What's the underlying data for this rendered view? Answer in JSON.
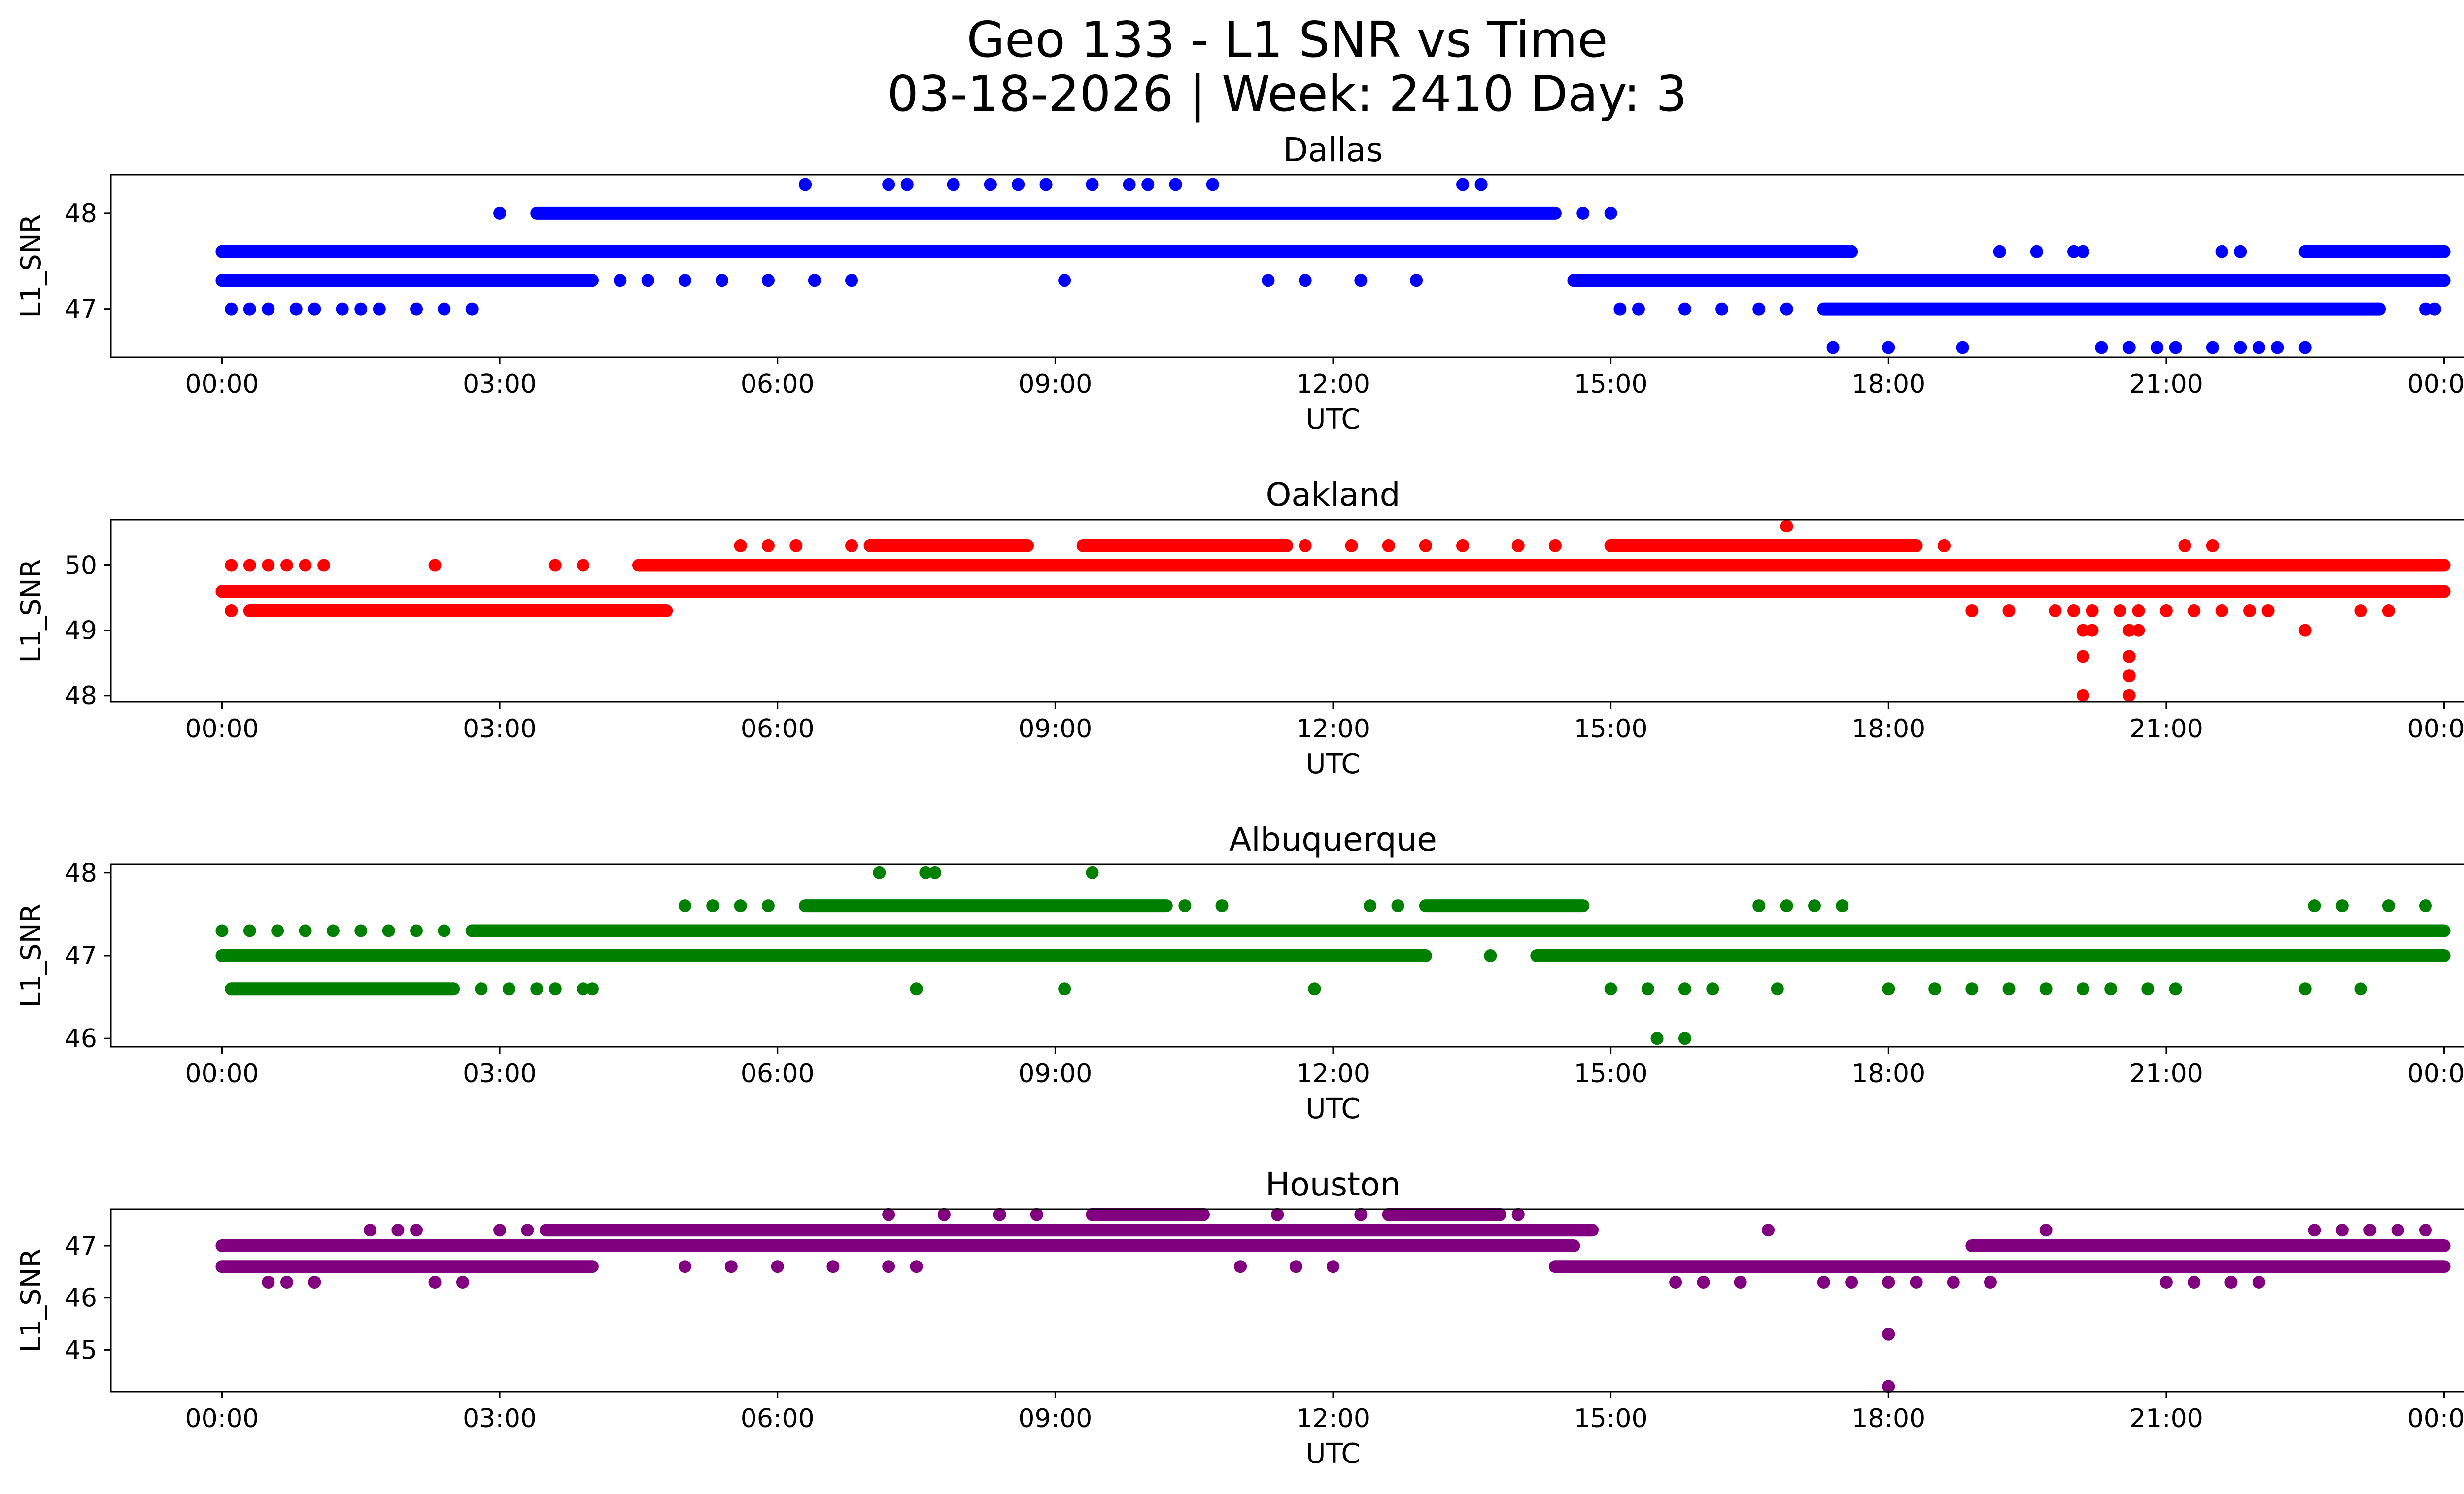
{
  "chart_data": {
    "type": "scatter",
    "title": "Geo 133 - L1 SNR vs Time",
    "subtitle": "03-18-2026 | Week: 2410 Day: 3",
    "xlabel": "UTC",
    "ylabel": "L1_SNR",
    "xlim_hours": [
      -1.2,
      25.2
    ],
    "xticks_hours": [
      0,
      3,
      6,
      9,
      12,
      15,
      18,
      21,
      24
    ],
    "xtick_labels": [
      "00:00",
      "03:00",
      "06:00",
      "09:00",
      "12:00",
      "15:00",
      "18:00",
      "21:00",
      "00:00"
    ],
    "panels": [
      {
        "name": "Dallas",
        "color": "#0000ff",
        "ylim": [
          46.5,
          48.4
        ],
        "yticks": [
          47,
          48
        ],
        "level_bands": [
          {
            "y": 47.6,
            "ranges": [
              [
                0.0,
                17.6
              ],
              [
                22.5,
                24.0
              ]
            ]
          },
          {
            "y": 47.3,
            "ranges": [
              [
                0.0,
                4.0
              ],
              [
                14.6,
                24.0
              ]
            ]
          },
          {
            "y": 47.0,
            "ranges": [
              [
                17.3,
                23.3
              ]
            ]
          },
          {
            "y": 48.0,
            "ranges": [
              [
                3.4,
                14.4
              ]
            ]
          }
        ],
        "scattered_points": [
          [
            0.1,
            47.0
          ],
          [
            0.3,
            47.0
          ],
          [
            0.5,
            47.0
          ],
          [
            0.8,
            47.0
          ],
          [
            1.0,
            47.0
          ],
          [
            1.3,
            47.0
          ],
          [
            1.5,
            47.0
          ],
          [
            1.7,
            47.0
          ],
          [
            2.1,
            47.0
          ],
          [
            2.4,
            47.0
          ],
          [
            2.7,
            47.0
          ],
          [
            4.3,
            47.3
          ],
          [
            4.6,
            47.3
          ],
          [
            5.0,
            47.3
          ],
          [
            5.4,
            47.3
          ],
          [
            5.9,
            47.3
          ],
          [
            6.4,
            47.3
          ],
          [
            6.8,
            47.3
          ],
          [
            9.1,
            47.3
          ],
          [
            11.3,
            47.3
          ],
          [
            11.7,
            47.3
          ],
          [
            12.3,
            47.3
          ],
          [
            12.9,
            47.3
          ],
          [
            3.0,
            48.0
          ],
          [
            14.7,
            48.0
          ],
          [
            15.0,
            48.0
          ],
          [
            15.1,
            47.0
          ],
          [
            15.3,
            47.0
          ],
          [
            15.8,
            47.0
          ],
          [
            16.2,
            47.0
          ],
          [
            16.6,
            47.0
          ],
          [
            16.9,
            47.0
          ],
          [
            23.8,
            47.0
          ],
          [
            23.9,
            47.0
          ],
          [
            6.3,
            48.3
          ],
          [
            7.2,
            48.3
          ],
          [
            7.4,
            48.3
          ],
          [
            7.9,
            48.3
          ],
          [
            8.3,
            48.3
          ],
          [
            8.6,
            48.3
          ],
          [
            8.9,
            48.3
          ],
          [
            9.4,
            48.3
          ],
          [
            9.8,
            48.3
          ],
          [
            10.0,
            48.3
          ],
          [
            10.3,
            48.3
          ],
          [
            10.7,
            48.3
          ],
          [
            13.4,
            48.3
          ],
          [
            13.6,
            48.3
          ],
          [
            19.2,
            47.6
          ],
          [
            19.6,
            47.6
          ],
          [
            20.0,
            47.6
          ],
          [
            20.1,
            47.6
          ],
          [
            21.6,
            47.6
          ],
          [
            21.8,
            47.6
          ],
          [
            17.4,
            46.6
          ],
          [
            18.0,
            46.6
          ],
          [
            18.8,
            46.6
          ],
          [
            20.3,
            46.6
          ],
          [
            20.6,
            46.6
          ],
          [
            20.9,
            46.6
          ],
          [
            21.1,
            46.6
          ],
          [
            21.5,
            46.6
          ],
          [
            21.8,
            46.6
          ],
          [
            22.0,
            46.6
          ],
          [
            22.2,
            46.6
          ],
          [
            22.5,
            46.6
          ]
        ]
      },
      {
        "name": "Oakland",
        "color": "#ff0000",
        "ylim": [
          47.9,
          50.7
        ],
        "yticks": [
          48,
          49,
          50
        ],
        "level_bands": [
          {
            "y": 49.6,
            "ranges": [
              [
                0.0,
                24.0
              ]
            ]
          },
          {
            "y": 49.3,
            "ranges": [
              [
                0.3,
                4.8
              ]
            ]
          },
          {
            "y": 50.0,
            "ranges": [
              [
                4.5,
                24.0
              ]
            ]
          },
          {
            "y": 50.3,
            "ranges": [
              [
                7.0,
                8.7
              ],
              [
                9.3,
                11.5
              ],
              [
                15.0,
                18.3
              ]
            ]
          }
        ],
        "scattered_points": [
          [
            0.1,
            49.3
          ],
          [
            0.1,
            50.0
          ],
          [
            0.3,
            50.0
          ],
          [
            0.5,
            50.0
          ],
          [
            0.7,
            50.0
          ],
          [
            0.9,
            50.0
          ],
          [
            1.1,
            50.0
          ],
          [
            2.3,
            50.0
          ],
          [
            3.6,
            50.0
          ],
          [
            3.9,
            50.0
          ],
          [
            5.6,
            50.3
          ],
          [
            5.9,
            50.3
          ],
          [
            6.2,
            50.3
          ],
          [
            6.8,
            50.3
          ],
          [
            11.7,
            50.3
          ],
          [
            12.2,
            50.3
          ],
          [
            12.6,
            50.3
          ],
          [
            13.0,
            50.3
          ],
          [
            13.4,
            50.3
          ],
          [
            14.0,
            50.3
          ],
          [
            14.4,
            50.3
          ],
          [
            16.2,
            50.3
          ],
          [
            16.6,
            50.3
          ],
          [
            18.6,
            50.3
          ],
          [
            21.2,
            50.3
          ],
          [
            21.5,
            50.3
          ],
          [
            16.9,
            50.6
          ],
          [
            18.9,
            49.3
          ],
          [
            19.3,
            49.3
          ],
          [
            19.8,
            49.3
          ],
          [
            20.0,
            49.3
          ],
          [
            20.2,
            49.3
          ],
          [
            20.5,
            49.3
          ],
          [
            20.7,
            49.3
          ],
          [
            21.0,
            49.3
          ],
          [
            21.3,
            49.3
          ],
          [
            21.6,
            49.3
          ],
          [
            21.9,
            49.3
          ],
          [
            22.1,
            49.3
          ],
          [
            23.1,
            49.3
          ],
          [
            23.4,
            49.3
          ],
          [
            20.1,
            49.0
          ],
          [
            20.2,
            49.0
          ],
          [
            20.6,
            49.0
          ],
          [
            20.7,
            49.0
          ],
          [
            22.5,
            49.0
          ],
          [
            20.1,
            48.6
          ],
          [
            20.6,
            48.6
          ],
          [
            20.6,
            48.3
          ],
          [
            20.1,
            48.0
          ],
          [
            20.6,
            48.0
          ]
        ]
      },
      {
        "name": "Albuquerque",
        "color": "#008000",
        "ylim": [
          45.9,
          48.1
        ],
        "yticks": [
          46,
          47,
          48
        ],
        "level_bands": [
          {
            "y": 47.3,
            "ranges": [
              [
                2.7,
                24.0
              ]
            ]
          },
          {
            "y": 47.0,
            "ranges": [
              [
                0.0,
                13.0
              ],
              [
                14.2,
                24.0
              ]
            ]
          },
          {
            "y": 46.6,
            "ranges": [
              [
                0.1,
                2.5
              ]
            ]
          },
          {
            "y": 47.6,
            "ranges": [
              [
                6.3,
                10.2
              ],
              [
                13.0,
                14.7
              ]
            ]
          }
        ],
        "scattered_points": [
          [
            0.0,
            47.3
          ],
          [
            0.3,
            47.3
          ],
          [
            0.6,
            47.3
          ],
          [
            0.9,
            47.3
          ],
          [
            1.2,
            47.3
          ],
          [
            1.5,
            47.3
          ],
          [
            1.8,
            47.3
          ],
          [
            2.1,
            47.3
          ],
          [
            2.4,
            47.3
          ],
          [
            2.8,
            46.6
          ],
          [
            3.1,
            46.6
          ],
          [
            3.4,
            46.6
          ],
          [
            3.6,
            46.6
          ],
          [
            3.9,
            46.6
          ],
          [
            4.0,
            46.6
          ],
          [
            5.0,
            47.6
          ],
          [
            5.3,
            47.6
          ],
          [
            5.6,
            47.6
          ],
          [
            5.9,
            47.6
          ],
          [
            10.4,
            47.6
          ],
          [
            10.8,
            47.6
          ],
          [
            12.4,
            47.6
          ],
          [
            12.7,
            47.6
          ],
          [
            7.1,
            48.0
          ],
          [
            7.6,
            48.0
          ],
          [
            7.7,
            48.0
          ],
          [
            9.4,
            48.0
          ],
          [
            7.5,
            46.6
          ],
          [
            9.1,
            46.6
          ],
          [
            11.8,
            46.6
          ],
          [
            8.1,
            47.0
          ],
          [
            9.8,
            47.0
          ],
          [
            10.2,
            47.0
          ],
          [
            13.7,
            47.0
          ],
          [
            15.0,
            46.6
          ],
          [
            15.4,
            46.6
          ],
          [
            15.8,
            46.6
          ],
          [
            16.1,
            46.6
          ],
          [
            16.8,
            46.6
          ],
          [
            18.0,
            46.6
          ],
          [
            18.5,
            46.6
          ],
          [
            18.9,
            46.6
          ],
          [
            19.3,
            46.6
          ],
          [
            19.7,
            46.6
          ],
          [
            20.1,
            46.6
          ],
          [
            20.4,
            46.6
          ],
          [
            20.8,
            46.6
          ],
          [
            21.1,
            46.6
          ],
          [
            22.5,
            46.6
          ],
          [
            23.1,
            46.6
          ],
          [
            15.5,
            46.0
          ],
          [
            15.8,
            46.0
          ],
          [
            16.6,
            47.6
          ],
          [
            16.9,
            47.6
          ],
          [
            17.2,
            47.6
          ],
          [
            17.5,
            47.6
          ],
          [
            22.6,
            47.6
          ],
          [
            22.9,
            47.6
          ],
          [
            23.4,
            47.6
          ],
          [
            23.8,
            47.6
          ]
        ]
      },
      {
        "name": "Houston",
        "color": "#800080",
        "ylim": [
          44.2,
          47.7
        ],
        "yticks": [
          45,
          46,
          47
        ],
        "level_bands": [
          {
            "y": 47.0,
            "ranges": [
              [
                0.0,
                14.6
              ],
              [
                18.9,
                24.0
              ]
            ]
          },
          {
            "y": 46.6,
            "ranges": [
              [
                0.0,
                4.0
              ],
              [
                14.4,
                24.0
              ]
            ]
          },
          {
            "y": 47.3,
            "ranges": [
              [
                3.5,
                14.8
              ]
            ]
          },
          {
            "y": 47.6,
            "ranges": [
              [
                9.4,
                10.6
              ],
              [
                12.6,
                13.8
              ]
            ]
          }
        ],
        "scattered_points": [
          [
            0.5,
            46.3
          ],
          [
            0.7,
            46.3
          ],
          [
            1.0,
            46.3
          ],
          [
            2.3,
            46.3
          ],
          [
            2.6,
            46.3
          ],
          [
            1.6,
            47.3
          ],
          [
            1.9,
            47.3
          ],
          [
            2.1,
            47.3
          ],
          [
            3.0,
            47.3
          ],
          [
            3.3,
            47.3
          ],
          [
            5.0,
            46.6
          ],
          [
            5.5,
            46.6
          ],
          [
            6.0,
            46.6
          ],
          [
            6.6,
            46.6
          ],
          [
            7.2,
            46.6
          ],
          [
            7.5,
            46.6
          ],
          [
            11.0,
            46.6
          ],
          [
            11.6,
            46.6
          ],
          [
            12.0,
            46.6
          ],
          [
            7.2,
            47.6
          ],
          [
            7.8,
            47.6
          ],
          [
            8.4,
            47.6
          ],
          [
            8.8,
            47.6
          ],
          [
            11.4,
            47.6
          ],
          [
            12.3,
            47.6
          ],
          [
            14.0,
            47.6
          ],
          [
            15.7,
            46.3
          ],
          [
            16.0,
            46.3
          ],
          [
            16.4,
            46.3
          ],
          [
            17.3,
            46.3
          ],
          [
            17.6,
            46.3
          ],
          [
            18.0,
            46.3
          ],
          [
            18.3,
            46.3
          ],
          [
            18.7,
            46.3
          ],
          [
            19.1,
            46.3
          ],
          [
            21.0,
            46.3
          ],
          [
            21.3,
            46.3
          ],
          [
            21.7,
            46.3
          ],
          [
            22.0,
            46.3
          ],
          [
            16.7,
            47.3
          ],
          [
            19.7,
            47.3
          ],
          [
            22.6,
            47.3
          ],
          [
            22.9,
            47.3
          ],
          [
            23.2,
            47.3
          ],
          [
            23.5,
            47.3
          ],
          [
            23.8,
            47.3
          ],
          [
            18.0,
            45.3
          ],
          [
            18.0,
            44.3
          ]
        ]
      }
    ]
  }
}
